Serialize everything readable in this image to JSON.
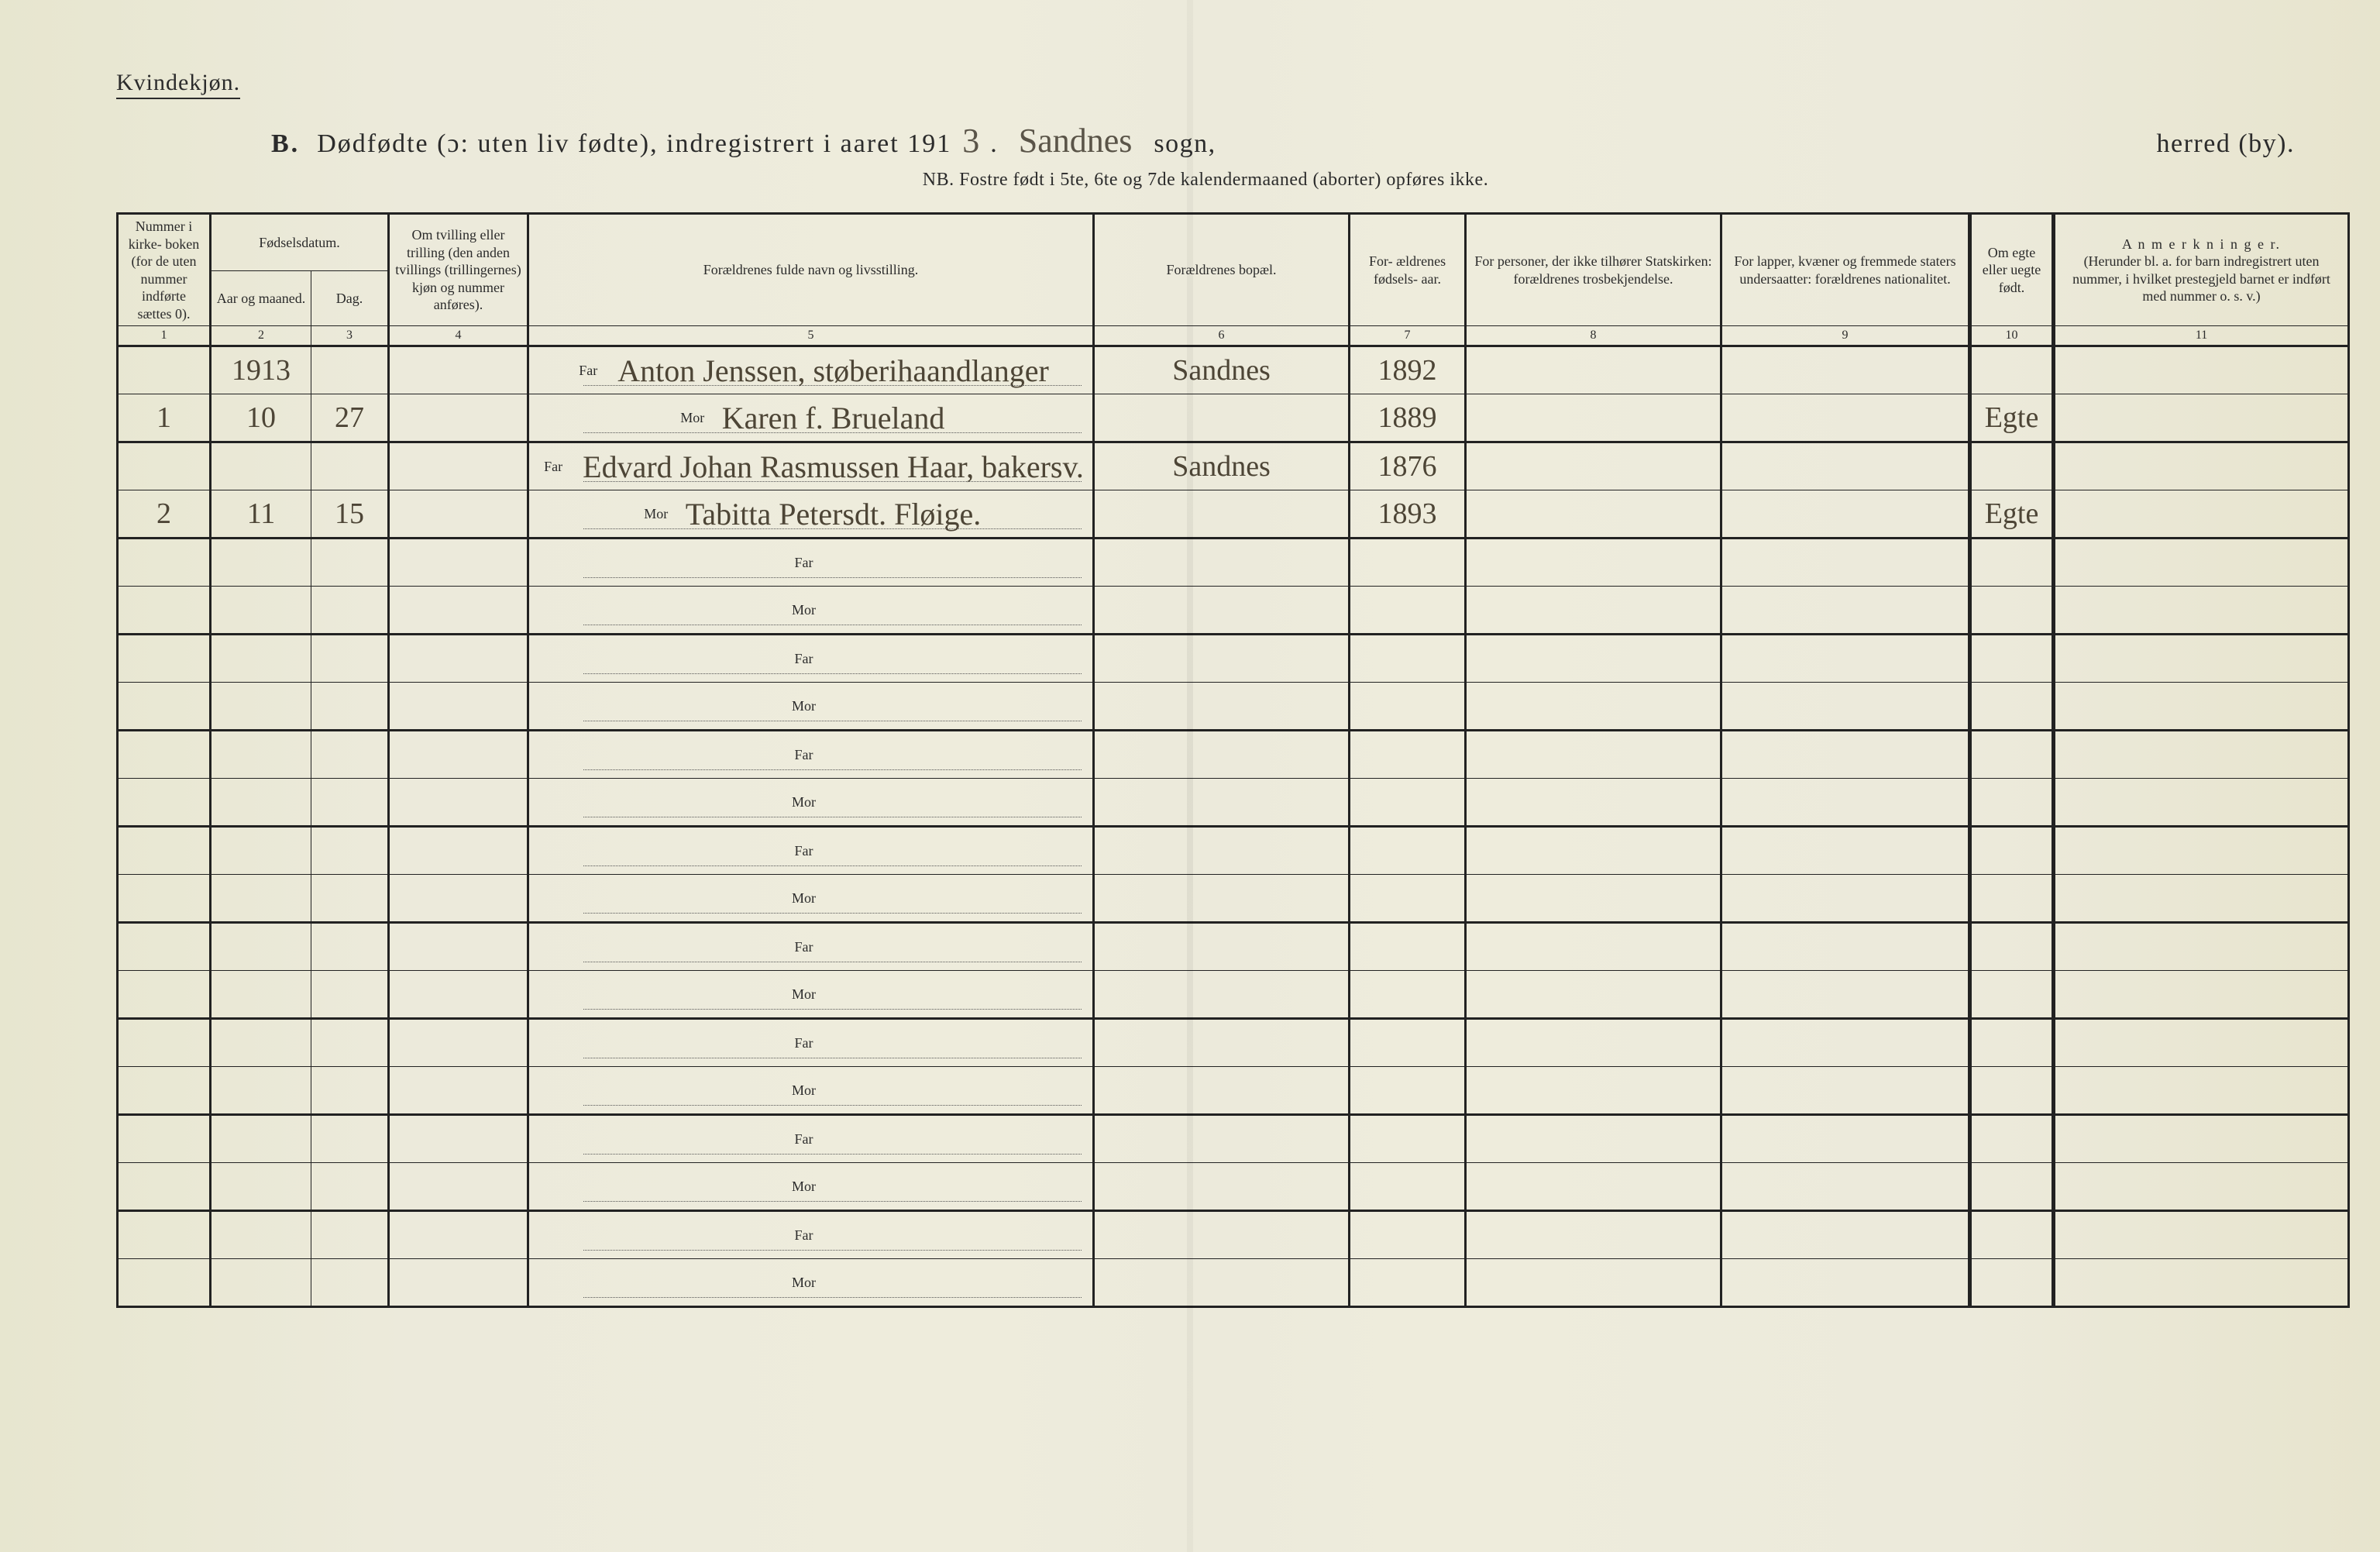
{
  "page": {
    "gender_heading": "Kvindekjøn.",
    "title_prefix": "B.",
    "title_main_a": "Dødfødte (ɔ: uten liv fødte), indregistrert i aaret 191",
    "year_hand": "3",
    "title_period": ".",
    "sogn_hand": "Sandnes",
    "sogn_label": "sogn,",
    "herred_label": "herred (by).",
    "nb_line": "NB.  Fostre født i 5te, 6te og 7de kalendermaaned (aborter) opføres ikke."
  },
  "columns": {
    "c1": "Nummer i kirke- boken (for de uten nummer indførte sættes 0).",
    "c_fd_group": "Fødselsdatum.",
    "c2": "Aar og maaned.",
    "c3": "Dag.",
    "c4": "Om tvilling eller trilling (den anden tvillings (trillingernes) kjøn og nummer anføres).",
    "c5": "Forældrenes fulde navn og livsstilling.",
    "c6": "Forældrenes bopæl.",
    "c7": "For- ældrenes fødsels- aar.",
    "c8": "For personer, der ikke tilhører Statskirken: forældrenes trosbekjendelse.",
    "c9": "For lapper, kvæner og fremmede staters undersaatter: forældrenes nationalitet.",
    "c10": "Om egte eller uegte født.",
    "c11_title": "A n m e r k n i n g e r.",
    "c11_sub": "(Herunder bl. a. for barn indregistrert uten nummer, i hvilket prestegjeld barnet er indført med nummer o. s. v.)",
    "idx": {
      "c1": "1",
      "c2": "2",
      "c3": "3",
      "c4": "4",
      "c5": "5",
      "c6": "6",
      "c7": "7",
      "c8": "8",
      "c9": "9",
      "c10": "10",
      "c11": "11"
    }
  },
  "labels": {
    "far": "Far",
    "mor": "Mor"
  },
  "entries": [
    {
      "num": "1",
      "year_top": "1913",
      "month": "10",
      "day": "27",
      "far": "Anton Jenssen, støberihaandlanger",
      "mor": "Karen f. Brueland",
      "bopael": "Sandnes",
      "far_aar": "1892",
      "mor_aar": "1889",
      "egte": "Egte"
    },
    {
      "num": "2",
      "year_top": "",
      "month": "11",
      "day": "15",
      "far": "Edvard Johan Rasmussen Haar, bakersv.",
      "mor": "Tabitta Petersdt. Fløige.",
      "bopael": "Sandnes",
      "far_aar": "1876",
      "mor_aar": "1893",
      "egte": "Egte"
    },
    {
      "num": "",
      "year_top": "",
      "month": "",
      "day": "",
      "far": "",
      "mor": "",
      "bopael": "",
      "far_aar": "",
      "mor_aar": "",
      "egte": ""
    },
    {
      "num": "",
      "year_top": "",
      "month": "",
      "day": "",
      "far": "",
      "mor": "",
      "bopael": "",
      "far_aar": "",
      "mor_aar": "",
      "egte": ""
    },
    {
      "num": "",
      "year_top": "",
      "month": "",
      "day": "",
      "far": "",
      "mor": "",
      "bopael": "",
      "far_aar": "",
      "mor_aar": "",
      "egte": ""
    },
    {
      "num": "",
      "year_top": "",
      "month": "",
      "day": "",
      "far": "",
      "mor": "",
      "bopael": "",
      "far_aar": "",
      "mor_aar": "",
      "egte": ""
    },
    {
      "num": "",
      "year_top": "",
      "month": "",
      "day": "",
      "far": "",
      "mor": "",
      "bopael": "",
      "far_aar": "",
      "mor_aar": "",
      "egte": ""
    },
    {
      "num": "",
      "year_top": "",
      "month": "",
      "day": "",
      "far": "",
      "mor": "",
      "bopael": "",
      "far_aar": "",
      "mor_aar": "",
      "egte": ""
    },
    {
      "num": "",
      "year_top": "",
      "month": "",
      "day": "",
      "far": "",
      "mor": "",
      "bopael": "",
      "far_aar": "",
      "mor_aar": "",
      "egte": ""
    },
    {
      "num": "",
      "year_top": "",
      "month": "",
      "day": "",
      "far": "",
      "mor": "",
      "bopael": "",
      "far_aar": "",
      "mor_aar": "",
      "egte": ""
    }
  ],
  "style": {
    "page_bg": "#eceadb",
    "ink": "#2b2b2b",
    "hand_ink": "#4d4536",
    "rule_heavy": 3,
    "rule_thin": 1,
    "header_font_size": 18,
    "body_font_size": 18,
    "hand_font_size": 40,
    "title_font_size": 34
  }
}
